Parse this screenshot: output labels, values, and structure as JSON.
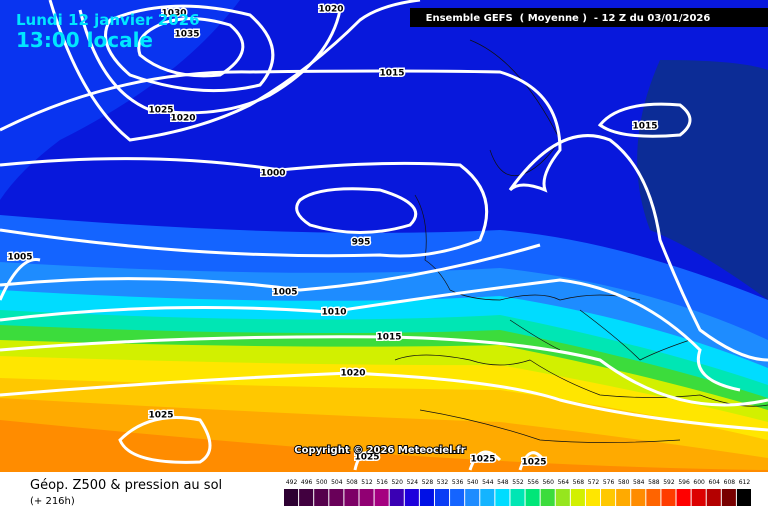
{
  "header": {
    "date": "Lundi 12 janvier 2026",
    "time": "13:00 locale",
    "run": "Ensemble GEFS  ( Moyenne )  - 12 Z du 03/01/2026"
  },
  "isobar_labels": [
    "1030",
    "1035",
    "1020",
    "1015",
    "1025",
    "1020",
    "1015",
    "1000",
    "995",
    "1005",
    "1005",
    "1010",
    "1015",
    "1020",
    "1025",
    "1025",
    "1025",
    "1025"
  ],
  "copyright": "Copyright © 2026 Meteociel.fr",
  "footer": {
    "title": "Géop. Z500 & pression au sol",
    "lead": "(+ 216h)"
  },
  "legend": {
    "items": [
      {
        "label": "492",
        "color": "#2d0032"
      },
      {
        "label": "496",
        "color": "#41003f"
      },
      {
        "label": "500",
        "color": "#55004c"
      },
      {
        "label": "504",
        "color": "#690059"
      },
      {
        "label": "508",
        "color": "#7d0066"
      },
      {
        "label": "512",
        "color": "#910073"
      },
      {
        "label": "516",
        "color": "#a50080"
      },
      {
        "label": "520",
        "color": "#3a00b4"
      },
      {
        "label": "524",
        "color": "#1e00dc"
      },
      {
        "label": "528",
        "color": "#0010e6"
      },
      {
        "label": "532",
        "color": "#0a3cf5"
      },
      {
        "label": "536",
        "color": "#1464ff"
      },
      {
        "label": "540",
        "color": "#1e8cff"
      },
      {
        "label": "544",
        "color": "#14b4ff"
      },
      {
        "label": "548",
        "color": "#00dcff"
      },
      {
        "label": "552",
        "color": "#00e6b4"
      },
      {
        "label": "556",
        "color": "#00e678"
      },
      {
        "label": "560",
        "color": "#3cdc3c"
      },
      {
        "label": "564",
        "color": "#96e61e"
      },
      {
        "label": "568",
        "color": "#d2f000"
      },
      {
        "label": "572",
        "color": "#ffe600"
      },
      {
        "label": "576",
        "color": "#ffc800"
      },
      {
        "label": "580",
        "color": "#ffaa00"
      },
      {
        "label": "584",
        "color": "#ff8c00"
      },
      {
        "label": "588",
        "color": "#ff6400"
      },
      {
        "label": "592",
        "color": "#ff3c00"
      },
      {
        "label": "596",
        "color": "#ff0000"
      },
      {
        "label": "600",
        "color": "#dc0000"
      },
      {
        "label": "604",
        "color": "#b40000"
      },
      {
        "label": "608",
        "color": "#780000"
      },
      {
        "label": "612",
        "color": "#000000"
      }
    ]
  }
}
